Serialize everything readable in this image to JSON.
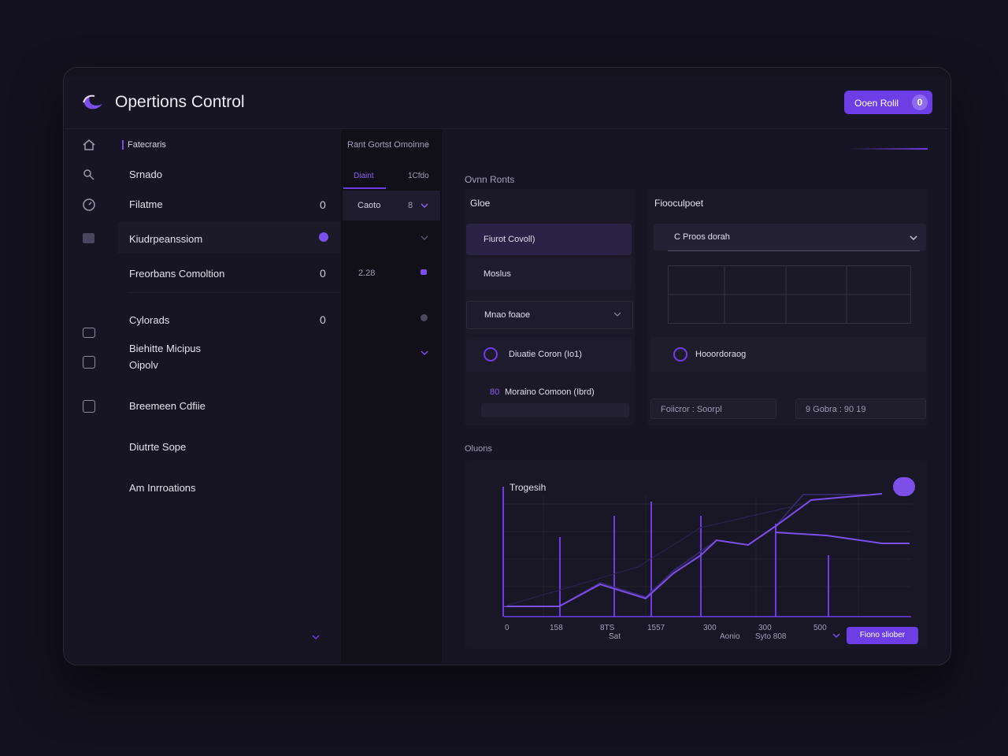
{
  "header": {
    "title": "Opertions Control",
    "button": "Ooen Rolil",
    "badge": "0"
  },
  "sidebar": {
    "section": "Fatecraris",
    "items": [
      {
        "label": "Srnado"
      },
      {
        "label": "Filatme",
        "count": "0"
      },
      {
        "label": "Kiudrpeanssiom"
      },
      {
        "label": "Freorbans Comoltion",
        "count": "0"
      },
      {
        "label": "Cylorads",
        "count": "0"
      },
      {
        "label": "Biehitte Micipus",
        "sublabel": "Oipolv"
      },
      {
        "label": "Breemeen Cdfiie"
      },
      {
        "label": "Diutrte Sope"
      },
      {
        "label": "Am Inrroations"
      }
    ]
  },
  "middle": {
    "heading": "Rant Gortst Omoinne",
    "tabs": [
      "Diaint",
      "1Cfdo"
    ],
    "select": "Caoto",
    "select_value": "8",
    "value": "2.28"
  },
  "overview": {
    "heading": "Ovnn Ronts",
    "left_panel": {
      "title": "Gloe",
      "rows": [
        "Fiurot Covoll)",
        "Moslus"
      ],
      "dropdown": "Mnao foaoe",
      "item1": "Diuatie Coron (Io1)",
      "item2_prefix": "80",
      "item2": "Moraino Comoon (Ibrd)"
    },
    "right_panel": {
      "title": "Fiooculpoet",
      "dropdown": "C Proos dorah",
      "item": "Hooordoraog",
      "input1": "Foiicror : Soorpl",
      "input2": "9 Gobra : 90 19"
    }
  },
  "options": {
    "heading": "Oluons",
    "chart_title": "Trogesih",
    "x_labels": [
      "0",
      "158",
      "8TS",
      "1557",
      "300",
      "300",
      "500"
    ],
    "x_caption": "Sat",
    "footer_left": "Aonio",
    "footer_right": "Syto 808",
    "button": "Fiono sliober"
  }
}
